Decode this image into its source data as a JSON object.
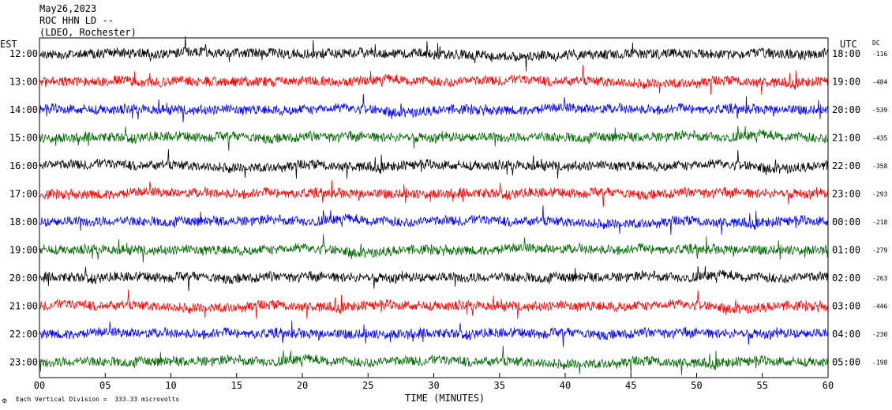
{
  "header": {
    "date": "May26,2023",
    "station": "ROC HHN LD --",
    "network": "(LDEO, Rochester)"
  },
  "footer": {
    "scale_note": "Each Vertical Division =  333.33 microvolts"
  },
  "chart_data": {
    "type": "line",
    "title": "May26,2023",
    "xlabel": "TIME (MINUTES)",
    "left_axis_label": "EST",
    "right_axis_label": "UTC",
    "dc_label": "DC",
    "xlim": [
      0,
      60
    ],
    "x_ticks": [
      "00",
      "05",
      "10",
      "15",
      "20",
      "25",
      "30",
      "35",
      "40",
      "45",
      "50",
      "55",
      "60"
    ],
    "trace_colors": [
      "#000000",
      "#ff0000",
      "#0000ff",
      "#006600"
    ],
    "traces": [
      {
        "est": "12:00",
        "utc": "18:00",
        "dc": "-116",
        "color": "#000000"
      },
      {
        "est": "13:00",
        "utc": "19:00",
        "dc": "-484",
        "color": "#ff0000"
      },
      {
        "est": "14:00",
        "utc": "20:00",
        "dc": "-539",
        "color": "#0000ff"
      },
      {
        "est": "15:00",
        "utc": "21:00",
        "dc": "-435",
        "color": "#006600"
      },
      {
        "est": "16:00",
        "utc": "22:00",
        "dc": "-358",
        "color": "#000000"
      },
      {
        "est": "17:00",
        "utc": "23:00",
        "dc": "-293",
        "color": "#ff0000"
      },
      {
        "est": "18:00",
        "utc": "00:00",
        "dc": "-218",
        "color": "#0000ff"
      },
      {
        "est": "19:00",
        "utc": "01:00",
        "dc": "-279",
        "color": "#006600"
      },
      {
        "est": "20:00",
        "utc": "02:00",
        "dc": "-263",
        "color": "#000000"
      },
      {
        "est": "21:00",
        "utc": "03:00",
        "dc": "-446",
        "color": "#ff0000"
      },
      {
        "est": "22:00",
        "utc": "04:00",
        "dc": "-230",
        "color": "#0000ff"
      },
      {
        "est": "23:00",
        "utc": "05:00",
        "dc": "-198",
        "color": "#006600"
      }
    ]
  }
}
